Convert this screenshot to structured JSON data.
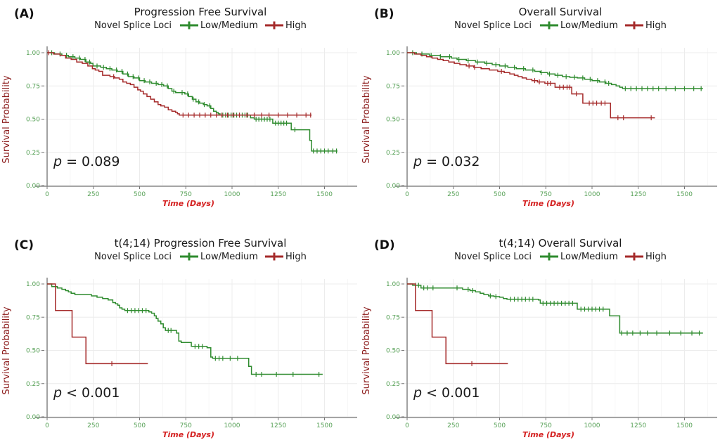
{
  "palette": {
    "low_medium": "#2e8b2e",
    "high": "#a52a2a",
    "tick_label": "#55a055",
    "y_axis_title": "#8b1a1a",
    "x_axis_title": "#d42020",
    "axis_line": "#8a8a8a",
    "tick_mark": "#777777",
    "grid_major": "#ececec",
    "grid_minor": "#f6f6f6",
    "text": "#1a1a1a"
  },
  "axes": {
    "xlabel": "Time (Days)",
    "ylabel": "Survival Probability",
    "xticks": [
      0,
      250,
      500,
      750,
      1000,
      1250,
      1500
    ],
    "xtick_labels": [
      "0",
      "250",
      "500",
      "750",
      "1000",
      "1250",
      "1500"
    ],
    "yticks": [
      0,
      0.25,
      0.5,
      0.75,
      1
    ],
    "ytick_labels": [
      "0.00",
      "0.25",
      "0.50",
      "0.75",
      "1.00"
    ],
    "xlim": [
      0,
      1680
    ],
    "ylim": [
      0,
      1.03
    ],
    "grid": true,
    "legend_position": "top"
  },
  "chart_data": [
    {
      "type": "line",
      "subtype": "kaplan-meier-step",
      "panel_label": "(A)",
      "title": "Progression Free Survival",
      "legend_title": "Novel Splice Loci",
      "p_value": "p = 0.089",
      "series": [
        {
          "name": "Low/Medium",
          "color": "#2e8b2e",
          "steps": [
            [
              0,
              1
            ],
            [
              40,
              0.99
            ],
            [
              80,
              0.98
            ],
            [
              115,
              0.97
            ],
            [
              150,
              0.96
            ],
            [
              180,
              0.95
            ],
            [
              210,
              0.93
            ],
            [
              235,
              0.92
            ],
            [
              248,
              0.9
            ],
            [
              290,
              0.89
            ],
            [
              320,
              0.88
            ],
            [
              350,
              0.87
            ],
            [
              380,
              0.86
            ],
            [
              410,
              0.84
            ],
            [
              440,
              0.82
            ],
            [
              470,
              0.81
            ],
            [
              500,
              0.79
            ],
            [
              530,
              0.78
            ],
            [
              565,
              0.77
            ],
            [
              600,
              0.76
            ],
            [
              630,
              0.75
            ],
            [
              655,
              0.73
            ],
            [
              675,
              0.71
            ],
            [
              695,
              0.7
            ],
            [
              745,
              0.69
            ],
            [
              765,
              0.67
            ],
            [
              785,
              0.65
            ],
            [
              805,
              0.63
            ],
            [
              825,
              0.62
            ],
            [
              845,
              0.61
            ],
            [
              865,
              0.6
            ],
            [
              885,
              0.58
            ],
            [
              900,
              0.56
            ],
            [
              915,
              0.55
            ],
            [
              925,
              0.54
            ],
            [
              935,
              0.53
            ],
            [
              1100,
              0.51
            ],
            [
              1120,
              0.5
            ],
            [
              1220,
              0.47
            ],
            [
              1320,
              0.42
            ],
            [
              1420,
              0.34
            ],
            [
              1430,
              0.26
            ],
            [
              1570,
              0.26
            ]
          ],
          "censors": [
            25,
            70,
            105,
            140,
            175,
            205,
            230,
            270,
            305,
            340,
            375,
            405,
            435,
            465,
            495,
            525,
            555,
            590,
            620,
            650,
            685,
            730,
            760,
            790,
            820,
            850,
            880,
            950,
            965,
            980,
            995,
            1010,
            1025,
            1040,
            1055,
            1070,
            1085,
            1130,
            1145,
            1160,
            1175,
            1190,
            1205,
            1235,
            1250,
            1265,
            1280,
            1295,
            1340,
            1440,
            1460,
            1480,
            1500,
            1520,
            1545,
            1565
          ]
        },
        {
          "name": "High",
          "color": "#a52a2a",
          "steps": [
            [
              0,
              1
            ],
            [
              35,
              0.99
            ],
            [
              70,
              0.98
            ],
            [
              100,
              0.96
            ],
            [
              130,
              0.95
            ],
            [
              160,
              0.93
            ],
            [
              190,
              0.92
            ],
            [
              220,
              0.9
            ],
            [
              245,
              0.88
            ],
            [
              260,
              0.87
            ],
            [
              280,
              0.86
            ],
            [
              300,
              0.83
            ],
            [
              340,
              0.82
            ],
            [
              365,
              0.81
            ],
            [
              390,
              0.8
            ],
            [
              410,
              0.78
            ],
            [
              430,
              0.77
            ],
            [
              450,
              0.76
            ],
            [
              470,
              0.74
            ],
            [
              490,
              0.72
            ],
            [
              505,
              0.71
            ],
            [
              520,
              0.69
            ],
            [
              540,
              0.67
            ],
            [
              560,
              0.65
            ],
            [
              580,
              0.63
            ],
            [
              600,
              0.61
            ],
            [
              615,
              0.6
            ],
            [
              635,
              0.59
            ],
            [
              655,
              0.57
            ],
            [
              675,
              0.56
            ],
            [
              695,
              0.55
            ],
            [
              705,
              0.54
            ],
            [
              715,
              0.53
            ],
            [
              1430,
              0.53
            ]
          ],
          "censors": [
            8,
            360,
            735,
            765,
            795,
            825,
            855,
            885,
            915,
            945,
            975,
            1005,
            1040,
            1080,
            1120,
            1160,
            1200,
            1250,
            1300,
            1350,
            1400,
            1425
          ]
        }
      ]
    },
    {
      "type": "line",
      "subtype": "kaplan-meier-step",
      "panel_label": "(B)",
      "title": "Overall Survival",
      "legend_title": "Novel Splice Loci",
      "p_value": "p = 0.032",
      "series": [
        {
          "name": "Low/Medium",
          "color": "#2e8b2e",
          "steps": [
            [
              0,
              1
            ],
            [
              50,
              0.99
            ],
            [
              120,
              0.98
            ],
            [
              180,
              0.97
            ],
            [
              240,
              0.96
            ],
            [
              270,
              0.95
            ],
            [
              320,
              0.94
            ],
            [
              370,
              0.93
            ],
            [
              420,
              0.92
            ],
            [
              460,
              0.91
            ],
            [
              500,
              0.9
            ],
            [
              545,
              0.89
            ],
            [
              590,
              0.88
            ],
            [
              640,
              0.87
            ],
            [
              690,
              0.86
            ],
            [
              720,
              0.85
            ],
            [
              760,
              0.84
            ],
            [
              800,
              0.83
            ],
            [
              840,
              0.82
            ],
            [
              880,
              0.815
            ],
            [
              920,
              0.81
            ],
            [
              960,
              0.8
            ],
            [
              1000,
              0.79
            ],
            [
              1040,
              0.78
            ],
            [
              1075,
              0.77
            ],
            [
              1105,
              0.76
            ],
            [
              1130,
              0.75
            ],
            [
              1150,
              0.74
            ],
            [
              1165,
              0.73
            ],
            [
              1600,
              0.73
            ]
          ],
          "censors": [
            30,
            80,
            130,
            180,
            230,
            280,
            330,
            380,
            430,
            480,
            530,
            580,
            630,
            680,
            725,
            770,
            815,
            860,
            905,
            950,
            990,
            1030,
            1070,
            1090,
            1180,
            1210,
            1240,
            1270,
            1300,
            1330,
            1360,
            1400,
            1450,
            1500,
            1550,
            1590
          ]
        },
        {
          "name": "High",
          "color": "#a52a2a",
          "steps": [
            [
              0,
              1
            ],
            [
              40,
              0.99
            ],
            [
              75,
              0.98
            ],
            [
              105,
              0.97
            ],
            [
              135,
              0.96
            ],
            [
              165,
              0.95
            ],
            [
              195,
              0.94
            ],
            [
              225,
              0.93
            ],
            [
              255,
              0.92
            ],
            [
              285,
              0.91
            ],
            [
              320,
              0.9
            ],
            [
              360,
              0.89
            ],
            [
              400,
              0.88
            ],
            [
              445,
              0.87
            ],
            [
              490,
              0.86
            ],
            [
              525,
              0.85
            ],
            [
              555,
              0.84
            ],
            [
              580,
              0.83
            ],
            [
              600,
              0.82
            ],
            [
              622,
              0.81
            ],
            [
              645,
              0.8
            ],
            [
              675,
              0.79
            ],
            [
              705,
              0.78
            ],
            [
              745,
              0.77
            ],
            [
              800,
              0.74
            ],
            [
              890,
              0.69
            ],
            [
              950,
              0.62
            ],
            [
              1100,
              0.51
            ],
            [
              1340,
              0.51
            ]
          ],
          "censors": [
            335,
            365,
            510,
            690,
            715,
            760,
            775,
            825,
            845,
            865,
            880,
            915,
            985,
            1005,
            1025,
            1050,
            1070,
            1140,
            1170,
            1320
          ]
        }
      ]
    },
    {
      "type": "line",
      "subtype": "kaplan-meier-step",
      "panel_label": "(C)",
      "title": "t(4;14) Progression Free Survival",
      "legend_title": "Novel Splice Loci",
      "p_value": "p < 0.001",
      "series": [
        {
          "name": "Low/Medium",
          "color": "#2e8b2e",
          "steps": [
            [
              0,
              1
            ],
            [
              25,
              0.98
            ],
            [
              55,
              0.97
            ],
            [
              80,
              0.96
            ],
            [
              100,
              0.95
            ],
            [
              115,
              0.94
            ],
            [
              130,
              0.93
            ],
            [
              150,
              0.92
            ],
            [
              240,
              0.91
            ],
            [
              270,
              0.9
            ],
            [
              300,
              0.89
            ],
            [
              330,
              0.88
            ],
            [
              355,
              0.86
            ],
            [
              370,
              0.85
            ],
            [
              382,
              0.84
            ],
            [
              392,
              0.82
            ],
            [
              405,
              0.81
            ],
            [
              420,
              0.8
            ],
            [
              550,
              0.79
            ],
            [
              565,
              0.78
            ],
            [
              580,
              0.76
            ],
            [
              590,
              0.74
            ],
            [
              600,
              0.72
            ],
            [
              615,
              0.7
            ],
            [
              628,
              0.67
            ],
            [
              640,
              0.65
            ],
            [
              700,
              0.63
            ],
            [
              712,
              0.57
            ],
            [
              725,
              0.56
            ],
            [
              780,
              0.53
            ],
            [
              865,
              0.52
            ],
            [
              885,
              0.45
            ],
            [
              895,
              0.44
            ],
            [
              1090,
              0.38
            ],
            [
              1105,
              0.32
            ],
            [
              1490,
              0.32
            ]
          ],
          "censors": [
            435,
            455,
            475,
            495,
            515,
            535,
            655,
            670,
            800,
            820,
            840,
            910,
            930,
            950,
            990,
            1030,
            1130,
            1160,
            1240,
            1330,
            1470
          ]
        },
        {
          "name": "High",
          "color": "#a52a2a",
          "steps": [
            [
              0,
              1
            ],
            [
              45,
              0.8
            ],
            [
              135,
              0.6
            ],
            [
              210,
              0.4
            ],
            [
              545,
              0.4
            ]
          ],
          "censors": [
            350
          ]
        }
      ]
    },
    {
      "type": "line",
      "subtype": "kaplan-meier-step",
      "panel_label": "(D)",
      "title": "t(4;14) Overall Survival",
      "legend_title": "Novel Splice Loci",
      "p_value": "p < 0.001",
      "series": [
        {
          "name": "Low/Medium",
          "color": "#2e8b2e",
          "steps": [
            [
              0,
              1
            ],
            [
              30,
              0.99
            ],
            [
              75,
              0.97
            ],
            [
              300,
              0.96
            ],
            [
              340,
              0.95
            ],
            [
              370,
              0.94
            ],
            [
              395,
              0.93
            ],
            [
              415,
              0.92
            ],
            [
              440,
              0.91
            ],
            [
              470,
              0.905
            ],
            [
              500,
              0.9
            ],
            [
              520,
              0.89
            ],
            [
              540,
              0.885
            ],
            [
              710,
              0.88
            ],
            [
              720,
              0.855
            ],
            [
              920,
              0.81
            ],
            [
              1095,
              0.76
            ],
            [
              1150,
              0.63
            ],
            [
              1600,
              0.63
            ]
          ],
          "censors": [
            45,
            62,
            90,
            110,
            140,
            270,
            330,
            355,
            450,
            480,
            560,
            580,
            600,
            620,
            640,
            660,
            680,
            735,
            755,
            775,
            795,
            815,
            835,
            855,
            875,
            895,
            940,
            960,
            980,
            1000,
            1020,
            1040,
            1060,
            1160,
            1190,
            1220,
            1260,
            1300,
            1350,
            1420,
            1480,
            1540,
            1580
          ]
        },
        {
          "name": "High",
          "color": "#a52a2a",
          "steps": [
            [
              0,
              1
            ],
            [
              45,
              0.8
            ],
            [
              135,
              0.6
            ],
            [
              210,
              0.4
            ],
            [
              545,
              0.4
            ]
          ],
          "censors": [
            350
          ]
        }
      ]
    }
  ]
}
